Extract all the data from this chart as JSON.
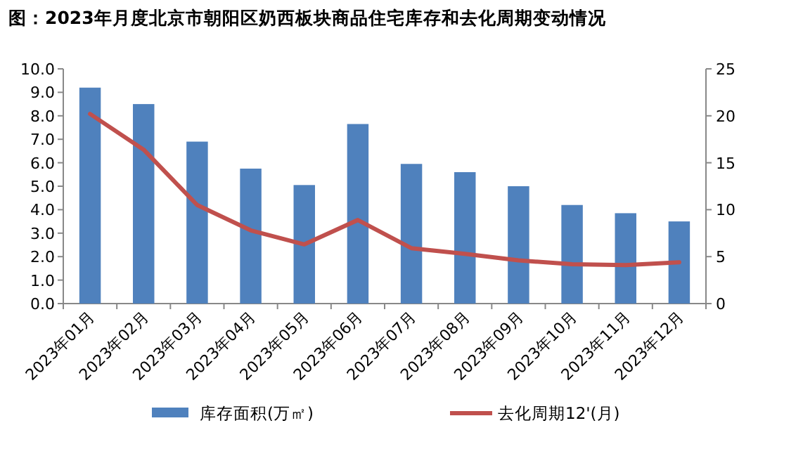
{
  "chart_data": {
    "type": "bar",
    "title": "图：2023年月度北京市朝阳区奶西板块商品住宅库存和去化周期变动情况",
    "categories": [
      "2023年01月",
      "2023年02月",
      "2023年03月",
      "2023年04月",
      "2023年05月",
      "2023年06月",
      "2023年07月",
      "2023年08月",
      "2023年09月",
      "2023年10月",
      "2023年11月",
      "2023年12月"
    ],
    "series": [
      {
        "name": "库存面积(万㎡)",
        "color": "#4f81bd",
        "values": [
          9.2,
          8.5,
          6.9,
          5.75,
          5.05,
          7.65,
          5.95,
          5.6,
          5.0,
          4.2,
          3.85,
          3.5
        ]
      },
      {
        "name": "去化周期12'(月)",
        "type": "line",
        "axis": "y2",
        "color": "#c0504d",
        "values": [
          20.2,
          16.4,
          10.5,
          7.8,
          6.3,
          8.9,
          5.9,
          5.3,
          4.6,
          4.2,
          4.1,
          4.4
        ]
      }
    ],
    "ylim": [
      0,
      10
    ],
    "yticks": [
      {
        "value": 0,
        "label": "0.0"
      },
      {
        "value": 1,
        "label": "1.0"
      },
      {
        "value": 2,
        "label": "2.0"
      },
      {
        "value": 3,
        "label": "3.0"
      },
      {
        "value": 4,
        "label": "4.0"
      },
      {
        "value": 5,
        "label": "5.0"
      },
      {
        "value": 6,
        "label": "6.0"
      },
      {
        "value": 7,
        "label": "7.0"
      },
      {
        "value": 8,
        "label": "8.0"
      },
      {
        "value": 9,
        "label": "9.0"
      },
      {
        "value": 10,
        "label": "10.0"
      }
    ],
    "y2lim": [
      0,
      25
    ],
    "y2ticks": [
      0,
      5,
      10,
      15,
      20,
      25
    ],
    "grid": false,
    "legend": "bottom",
    "marker": "none",
    "line_style": "solid"
  }
}
